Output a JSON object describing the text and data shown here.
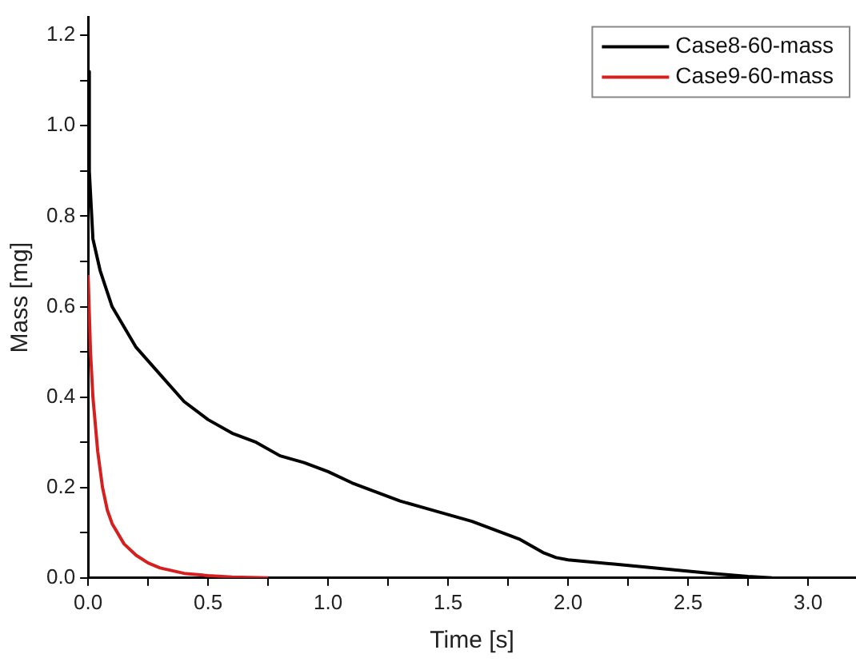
{
  "chart_data": {
    "type": "line",
    "xlabel": "Time [s]",
    "ylabel": "Mass [mg]",
    "xlim": [
      0,
      3.2
    ],
    "ylim": [
      0,
      1.24
    ],
    "xticks": [
      {
        "value": 0,
        "label": "0.0"
      },
      {
        "value": 0.25,
        "label": null
      },
      0.5,
      {
        "value": 0.75,
        "label": null
      },
      {
        "value": 1,
        "label": "1.0"
      },
      {
        "value": 1.25,
        "label": null
      },
      1.5,
      {
        "value": 1.75,
        "label": null
      },
      {
        "value": 2,
        "label": "2.0"
      },
      {
        "value": 2.25,
        "label": null
      },
      2.5,
      {
        "value": 2.75,
        "label": null
      },
      {
        "value": 3,
        "label": "3.0"
      }
    ],
    "yticks": [
      {
        "value": 0,
        "label": "0.0"
      },
      {
        "value": 0.1,
        "label": null
      },
      0.2,
      {
        "value": 0.3,
        "label": null
      },
      0.4,
      {
        "value": 0.5,
        "label": null
      },
      0.6,
      {
        "value": 0.7,
        "label": null
      },
      0.8,
      {
        "value": 0.9,
        "label": null
      },
      {
        "value": 1,
        "label": "1.0"
      },
      {
        "value": 1.1,
        "label": null
      },
      1.2
    ],
    "grid": false,
    "legend": "top right",
    "marker": "none",
    "line_style": "solid",
    "series": [
      {
        "name": "Case8-60-mass",
        "color": "#000000",
        "x": [
          0,
          0.005,
          0.02,
          0.05,
          0.1,
          0.2,
          0.3,
          0.4,
          0.5,
          0.6,
          0.7,
          0.8,
          0.9,
          1.0,
          1.1,
          1.2,
          1.3,
          1.4,
          1.5,
          1.6,
          1.7,
          1.8,
          1.85,
          1.9,
          1.95,
          2.0,
          2.2,
          2.4,
          2.6,
          2.75,
          2.85
        ],
        "values": [
          1.12,
          0.9,
          0.75,
          0.68,
          0.6,
          0.51,
          0.45,
          0.39,
          0.35,
          0.32,
          0.3,
          0.27,
          0.255,
          0.235,
          0.21,
          0.19,
          0.17,
          0.155,
          0.14,
          0.125,
          0.105,
          0.085,
          0.07,
          0.055,
          0.045,
          0.04,
          0.03,
          0.02,
          0.01,
          0.003,
          0
        ]
      },
      {
        "name": "Case9-60-mass",
        "color": "#d62020",
        "x": [
          0,
          0.01,
          0.02,
          0.04,
          0.06,
          0.08,
          0.1,
          0.15,
          0.2,
          0.25,
          0.3,
          0.4,
          0.5,
          0.6,
          0.75
        ],
        "values": [
          0.67,
          0.5,
          0.4,
          0.28,
          0.2,
          0.15,
          0.12,
          0.075,
          0.05,
          0.033,
          0.022,
          0.01,
          0.005,
          0.002,
          0
        ]
      }
    ]
  }
}
